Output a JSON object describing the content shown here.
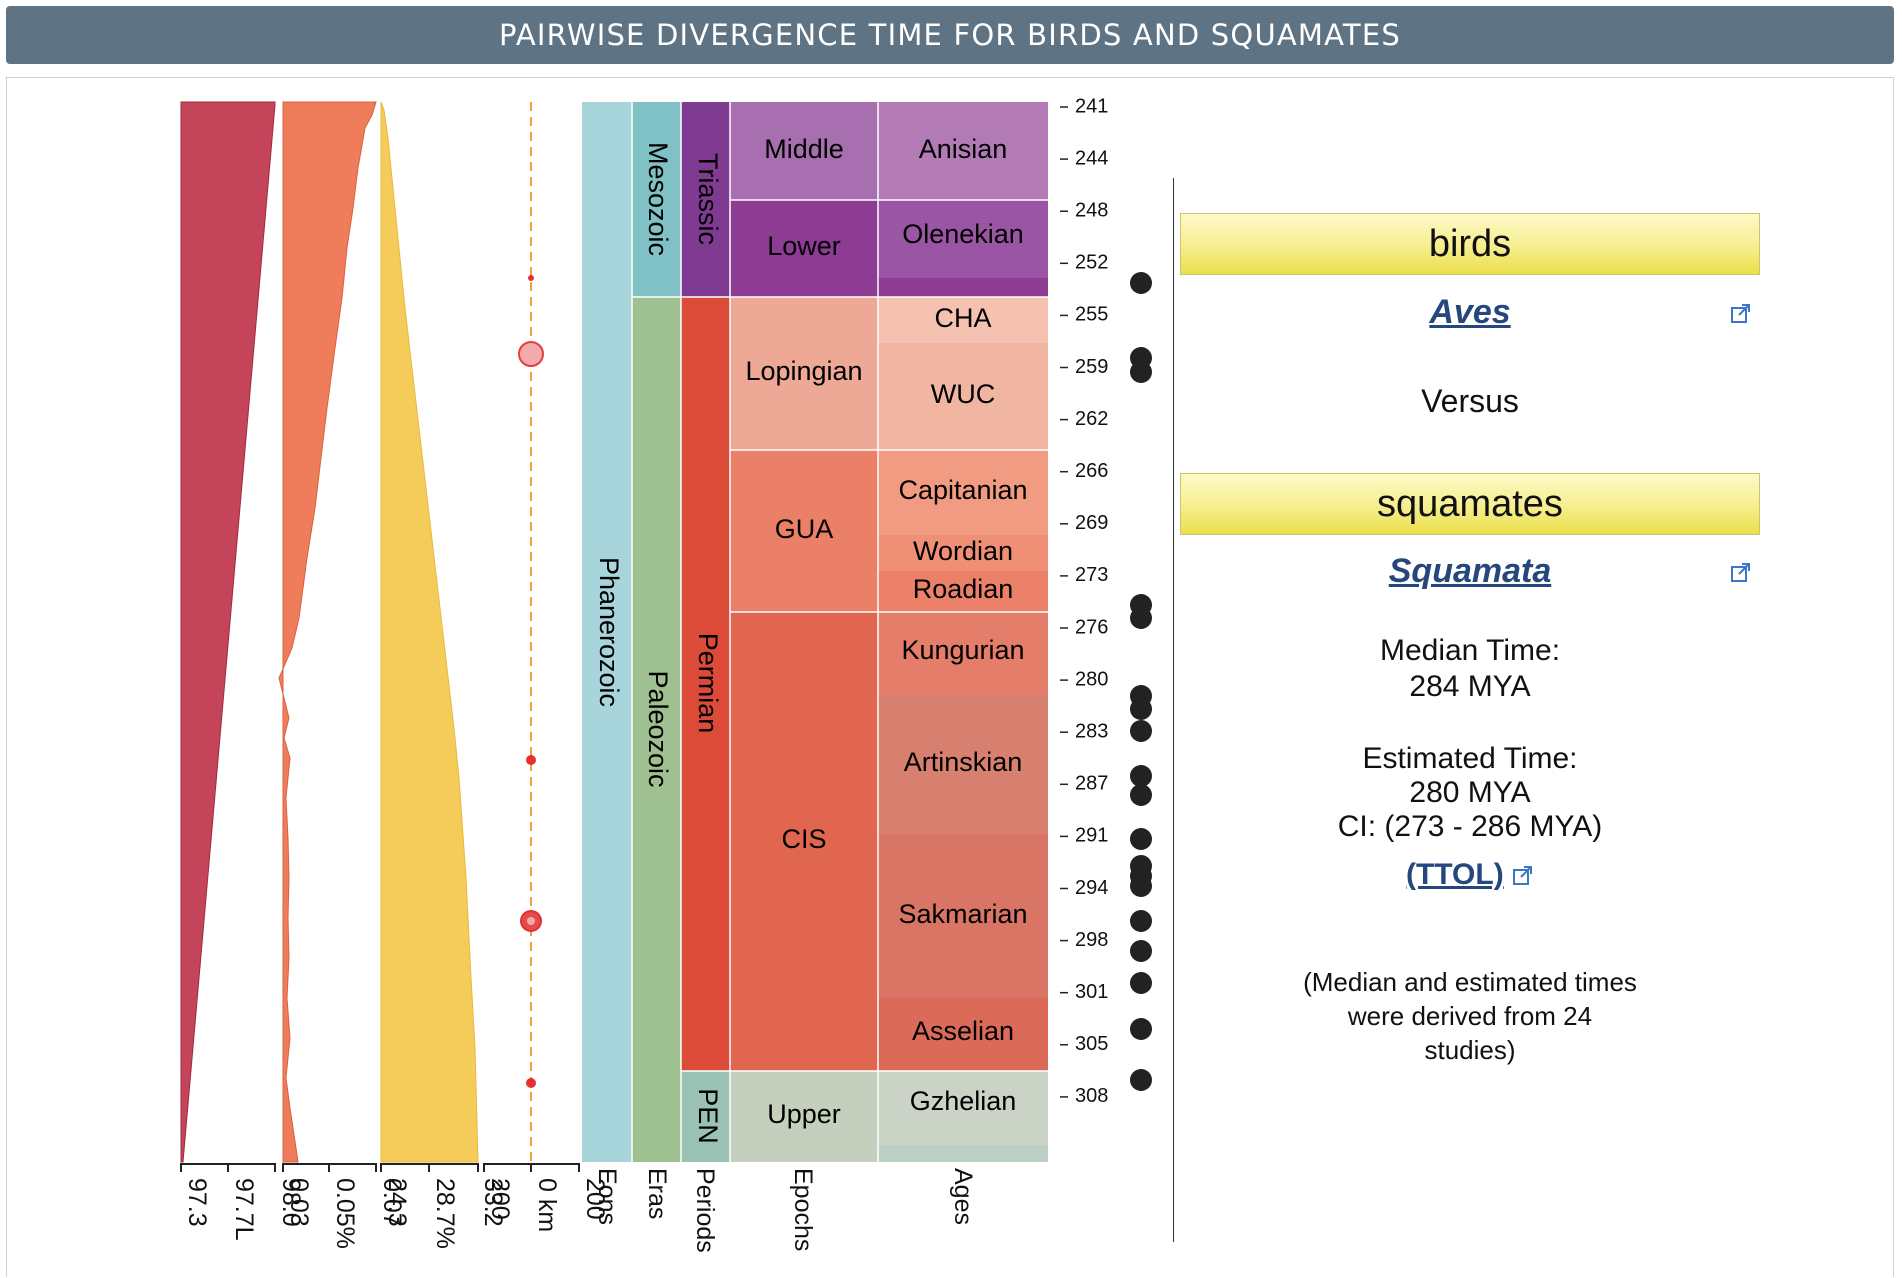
{
  "header": {
    "title": "PAIRWISE DIVERGENCE TIME FOR BIRDS AND SQUAMATES"
  },
  "comparison": {
    "taxon_a": {
      "common_name": "birds",
      "scientific_name": "Aves"
    },
    "versus": "Versus",
    "taxon_b": {
      "common_name": "squamates",
      "scientific_name": "Squamata"
    },
    "median_label": "Median Time:",
    "median_value": "284 MYA",
    "estimated_label": "Estimated Time:",
    "estimated_value": "280 MYA",
    "ci": "CI: (273 - 286 MYA)",
    "ttol_link": "(TTOL)",
    "note_line1": "(Median and estimated times",
    "note_line2": "were derived from 24",
    "note_line3": "studies)"
  },
  "timescale": {
    "tick_labels": [
      "241",
      "244",
      "248",
      "252",
      "255",
      "259",
      "262",
      "266",
      "269",
      "273",
      "276",
      "280",
      "283",
      "287",
      "291",
      "294",
      "298",
      "301",
      "305",
      "308"
    ],
    "eons": [
      {
        "name": "Phanerozoic",
        "color": "#a8d5dc"
      }
    ],
    "eras": [
      {
        "name": "Mesozoic",
        "color": "#7fc1c5"
      },
      {
        "name": "Paleozoic",
        "color": "#9fc090"
      }
    ],
    "periods": [
      {
        "name": "Triassic",
        "color": "#7f3a92"
      },
      {
        "name": "Permian",
        "color": "#dc4a38"
      },
      {
        "name": "PEN",
        "color": "#9ac2b4"
      }
    ],
    "epochs": [
      {
        "name": "Middle",
        "color": "#a86fb0"
      },
      {
        "name": "Lower",
        "color": "#8c3c93"
      },
      {
        "name": "Lopingian",
        "color": "#eea896"
      },
      {
        "name": "GUA",
        "color": "#eb8068"
      },
      {
        "name": "CIS",
        "color": "#e06650"
      },
      {
        "name": "Upper",
        "color": "#c4d0bd"
      }
    ],
    "ages": [
      {
        "name": "Anisian",
        "color": "#b27bb6"
      },
      {
        "name": "Olenekian",
        "color": "#9a56a4"
      },
      {
        "name": "CHA",
        "color": "#f5c2b2"
      },
      {
        "name": "WUC",
        "color": "#f0b6a2"
      },
      {
        "name": "Capitanian",
        "color": "#f19b82"
      },
      {
        "name": "Wordian",
        "color": "#ee8f76"
      },
      {
        "name": "Roadian",
        "color": "#eb8168"
      },
      {
        "name": "Kungurian",
        "color": "#e47e6a"
      },
      {
        "name": "Artinskian",
        "color": "#d88070"
      },
      {
        "name": "Sakmarian",
        "color": "#d87565"
      },
      {
        "name": "Asselian",
        "color": "#dc6a58"
      },
      {
        "name": "Gzhelian",
        "color": "#cbd3c7"
      }
    ],
    "axis_labels": {
      "co2_ticks": [
        "97.3",
        "97.7L",
        "98.0"
      ],
      "o2_ticks": [
        "0.03",
        "0.05%",
        "0.07"
      ],
      "ox_ticks": [
        "24.3",
        "28.7%",
        "33.2"
      ],
      "impact_ticks": [
        "200",
        "0 km",
        "200"
      ],
      "columns": [
        "Eons",
        "Eras",
        "Periods",
        "Epochs",
        "Ages"
      ]
    }
  }
}
